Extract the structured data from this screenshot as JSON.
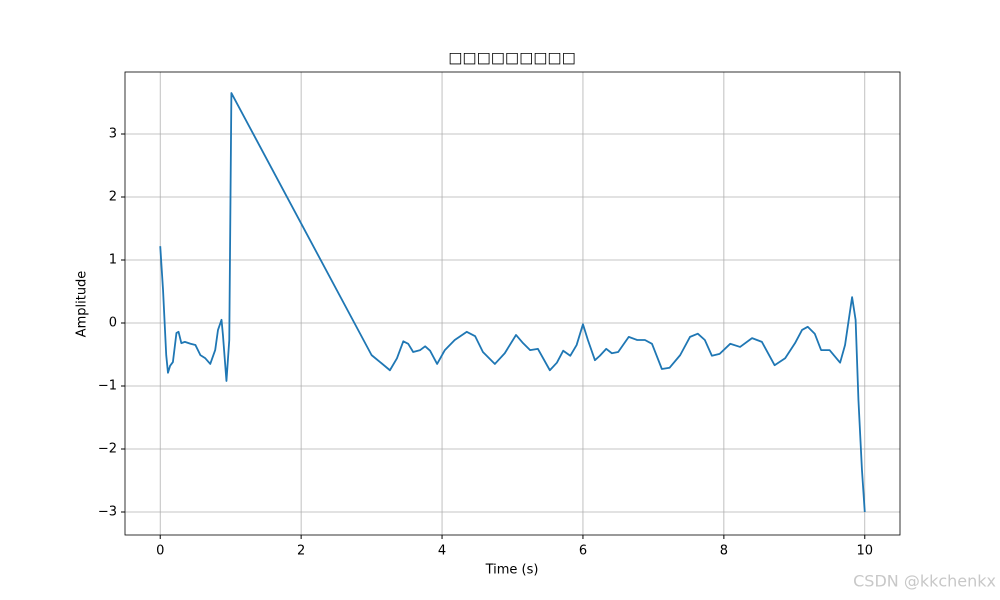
{
  "chart_data": {
    "type": "line",
    "title": "□□□□□□□□□",
    "xlabel": "Time (s)",
    "ylabel": "Amplitude",
    "x": [
      0,
      0.04,
      0.085,
      0.11,
      0.14,
      0.18,
      0.23,
      0.26,
      0.3,
      0.35,
      0.43,
      0.5,
      0.57,
      0.64,
      0.71,
      0.78,
      0.82,
      0.87,
      0.89,
      0.94,
      0.98,
      1.01,
      2.0,
      3.0,
      3.12,
      3.26,
      3.36,
      3.45,
      3.52,
      3.59,
      3.69,
      3.76,
      3.83,
      3.93,
      4.04,
      4.18,
      4.35,
      4.47,
      4.58,
      4.75,
      4.89,
      5.05,
      5.15,
      5.25,
      5.36,
      5.53,
      5.63,
      5.72,
      5.82,
      5.91,
      6.0,
      6.07,
      6.17,
      6.24,
      6.33,
      6.41,
      6.5,
      6.65,
      6.77,
      6.88,
      6.98,
      7.12,
      7.23,
      7.38,
      7.52,
      7.63,
      7.73,
      7.83,
      7.94,
      8.09,
      8.23,
      8.4,
      8.54,
      8.72,
      8.87,
      9.01,
      9.11,
      9.19,
      9.29,
      9.38,
      9.5,
      9.65,
      9.72,
      9.82,
      9.87,
      9.91,
      9.96,
      10.0
    ],
    "series": [
      {
        "name": "Amplitude",
        "color": "#1f77b4",
        "values": [
          1.22,
          0.52,
          -0.51,
          -0.79,
          -0.68,
          -0.62,
          -0.16,
          -0.14,
          -0.32,
          -0.3,
          -0.33,
          -0.35,
          -0.51,
          -0.56,
          -0.65,
          -0.43,
          -0.11,
          0.05,
          -0.19,
          -0.92,
          -0.27,
          3.65,
          1.58,
          -0.51,
          -0.62,
          -0.75,
          -0.56,
          -0.29,
          -0.33,
          -0.46,
          -0.43,
          -0.37,
          -0.44,
          -0.65,
          -0.43,
          -0.27,
          -0.14,
          -0.21,
          -0.46,
          -0.65,
          -0.48,
          -0.19,
          -0.32,
          -0.43,
          -0.41,
          -0.75,
          -0.63,
          -0.44,
          -0.52,
          -0.35,
          -0.02,
          -0.27,
          -0.59,
          -0.52,
          -0.41,
          -0.48,
          -0.46,
          -0.22,
          -0.27,
          -0.27,
          -0.33,
          -0.73,
          -0.71,
          -0.51,
          -0.22,
          -0.17,
          -0.27,
          -0.52,
          -0.49,
          -0.33,
          -0.38,
          -0.24,
          -0.3,
          -0.67,
          -0.56,
          -0.32,
          -0.11,
          -0.06,
          -0.17,
          -0.43,
          -0.43,
          -0.63,
          -0.35,
          0.41,
          0.05,
          -1.22,
          -2.33,
          -3.0
        ]
      }
    ],
    "xlim": [
      -0.5,
      10.5
    ],
    "xticks": [
      0,
      2,
      4,
      6,
      8,
      10
    ],
    "ylim": [
      -3.365,
      3.984
    ],
    "yticks": [
      {
        "value": -3,
        "label": "−3"
      },
      {
        "value": -2,
        "label": "−2"
      },
      {
        "value": -1,
        "label": "−1"
      },
      0,
      1,
      2,
      3
    ],
    "grid": true
  },
  "watermark": "CSDN @kkchenkx"
}
